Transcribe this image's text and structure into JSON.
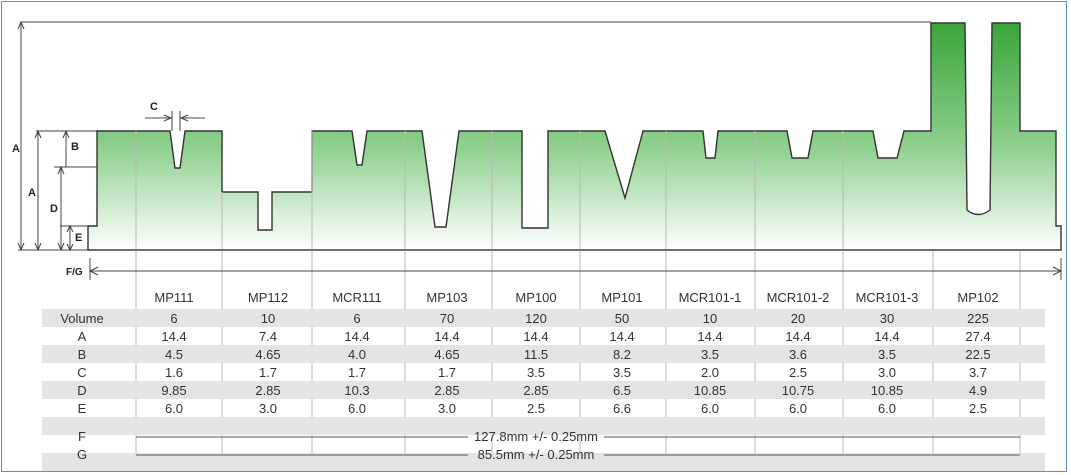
{
  "dim_labels": {
    "A_outer": "A",
    "A_inner": "A",
    "B": "B",
    "C": "C",
    "D": "D",
    "E": "E",
    "FG": "F/G"
  },
  "columns": [
    "MP111",
    "MP112",
    "MCR111",
    "MP103",
    "MP100",
    "MP101",
    "MCR101-1",
    "MCR101-2",
    "MCR101-3",
    "MP102"
  ],
  "rows": [
    {
      "label": "Volume",
      "values": [
        "6",
        "10",
        "6",
        "70",
        "120",
        "50",
        "10",
        "20",
        "30",
        "225"
      ]
    },
    {
      "label": "A",
      "values": [
        "14.4",
        "7.4",
        "14.4",
        "14.4",
        "14.4",
        "14.4",
        "14.4",
        "14.4",
        "14.4",
        "27.4"
      ]
    },
    {
      "label": "B",
      "values": [
        "4.5",
        "4.65",
        "4.0",
        "4.65",
        "11.5",
        "8.2",
        "3.5",
        "3.6",
        "3.5",
        "22.5"
      ]
    },
    {
      "label": "C",
      "values": [
        "1.6",
        "1.7",
        "1.7",
        "1.7",
        "3.5",
        "3.5",
        "2.0",
        "2.5",
        "3.0",
        "3.7"
      ]
    },
    {
      "label": "D",
      "values": [
        "9.85",
        "2.85",
        "10.3",
        "2.85",
        "2.85",
        "6.5",
        "10.85",
        "10.75",
        "10.85",
        "4.9"
      ]
    },
    {
      "label": "E",
      "values": [
        "6.0",
        "3.0",
        "6.0",
        "3.0",
        "2.5",
        "6.6",
        "6.0",
        "6.0",
        "6.0",
        "2.5"
      ]
    }
  ],
  "span_rows": [
    {
      "label": "F",
      "text": "127.8mm +/- 0.25mm"
    },
    {
      "label": "G",
      "text": "85.5mm +/- 0.25mm"
    }
  ],
  "colors": {
    "border": "#5b8fd0",
    "green_top": "#3aa53a",
    "green_bottom": "#ffffff",
    "row_shade": "#e4e4e4",
    "line": "#555555"
  }
}
